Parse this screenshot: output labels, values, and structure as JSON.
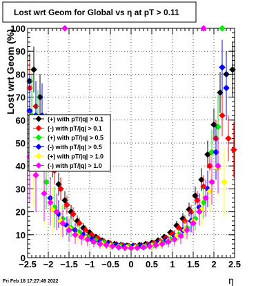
{
  "title": "Lost wrt Geom for Global vs    η at pT > 0.11",
  "footer": "Fri Feb 18 17:27:49 2022",
  "chart_data": {
    "type": "scatter",
    "title": "Lost wrt Geom for Global vs    η at pT > 0.11",
    "xlabel": "η",
    "ylabel": "Lost wrt Geom (%)",
    "xlim": [
      -2.5,
      2.5
    ],
    "ylim": [
      0,
      100
    ],
    "x_ticks": [
      "−2.5",
      "−2",
      "−1.5",
      "−1",
      "−0.5",
      "0",
      "0.5",
      "1",
      "1.5",
      "2",
      "2.5"
    ],
    "y_ticks": [
      "0",
      "10",
      "20",
      "30",
      "40",
      "50",
      "60",
      "70",
      "80",
      "90",
      "100"
    ],
    "grid": true,
    "legend_position": "left",
    "series": [
      {
        "name": "(+) with pT/|q| > 0.1",
        "color": "#000000",
        "x": [
          -2.45,
          -2.35,
          -2.2,
          -2.05,
          -1.9,
          -1.75,
          -1.6,
          -1.45,
          -1.3,
          -1.15,
          -1.0,
          -0.85,
          -0.7,
          -0.55,
          -0.4,
          -0.25,
          -0.1,
          0.05,
          0.2,
          0.35,
          0.5,
          0.65,
          0.8,
          0.95,
          1.1,
          1.25,
          1.4,
          1.55,
          1.7,
          1.85,
          2.0,
          2.15,
          2.3,
          2.45
        ],
        "y": [
          77,
          82,
          70,
          55,
          42,
          32,
          25,
          20,
          16,
          13,
          11,
          9,
          7.5,
          6.5,
          6,
          5.5,
          5.2,
          5.2,
          5.5,
          6,
          6.5,
          7.5,
          9,
          11,
          14,
          17,
          21,
          27,
          34,
          45,
          58,
          72,
          80,
          82
        ],
        "err": [
          12,
          10,
          10,
          8,
          7,
          5,
          4,
          3,
          2.5,
          2,
          1.5,
          1.2,
          1,
          1,
          0.8,
          0.8,
          0.8,
          0.8,
          0.8,
          0.8,
          1,
          1,
          1.2,
          1.5,
          2,
          2.5,
          3,
          4,
          5,
          6,
          7,
          9,
          10,
          12
        ]
      },
      {
        "name": "(-) with pT/|q| > 0.1",
        "color": "#ff0000",
        "x": [
          -2.45,
          -2.3,
          -2.15,
          -2.0,
          -1.85,
          -1.7,
          -1.55,
          -1.4,
          -1.25,
          -1.1,
          -0.95,
          -0.8,
          -0.65,
          -0.5,
          -0.35,
          -0.2,
          -0.05,
          0.1,
          0.25,
          0.4,
          0.55,
          0.7,
          0.85,
          1.0,
          1.15,
          1.3,
          1.45,
          1.6,
          1.75,
          1.9,
          2.05,
          2.2,
          2.35,
          2.48
        ],
        "y": [
          74,
          66,
          58,
          48,
          38,
          30,
          23,
          19,
          15,
          12,
          10,
          8.5,
          7,
          6.2,
          5.8,
          5.4,
          5.1,
          5.1,
          5.4,
          5.8,
          6.3,
          7.2,
          8.6,
          10.5,
          13,
          16,
          20,
          25,
          31,
          40,
          52,
          62,
          52,
          47
        ],
        "err": [
          12,
          10,
          9,
          8,
          6,
          5,
          4,
          3,
          2.5,
          2,
          1.5,
          1.2,
          1,
          1,
          0.8,
          0.8,
          0.8,
          0.8,
          0.8,
          0.8,
          1,
          1,
          1.2,
          1.5,
          2,
          2.5,
          3,
          4,
          5,
          6,
          8,
          9,
          10,
          12
        ]
      },
      {
        "name": "(+) with pT/|q| > 0.5",
        "color": "#00ee00",
        "x": [
          -2.4,
          -2.25,
          -2.05,
          -1.85,
          -1.65,
          -1.45,
          -1.25,
          -1.05,
          -0.85,
          -0.65,
          -0.45,
          -0.25,
          -0.05,
          0.15,
          0.35,
          0.55,
          0.75,
          0.95,
          1.15,
          1.35,
          1.55,
          1.75,
          1.95,
          2.1,
          2.2
        ],
        "y": [
          62,
          58,
          33,
          22,
          17,
          13,
          11,
          9,
          7.5,
          6.5,
          5.5,
          5,
          4.8,
          4.8,
          5,
          5.5,
          6.5,
          8,
          10,
          13,
          17,
          24,
          46,
          57,
          100
        ],
        "err": [
          18,
          15,
          12,
          9,
          6,
          4,
          3,
          2.5,
          2,
          1.5,
          1.2,
          1,
          1,
          1,
          1,
          1.2,
          1.5,
          2,
          2.5,
          3.5,
          5,
          7,
          10,
          14,
          0
        ]
      },
      {
        "name": "(-) with pT/|q| > 0.5",
        "color": "#0000ff",
        "x": [
          -2.45,
          -2.3,
          -2.15,
          -1.95,
          -1.75,
          -1.55,
          -1.35,
          -1.15,
          -0.95,
          -0.75,
          -0.55,
          -0.35,
          -0.15,
          0.05,
          0.25,
          0.45,
          0.65,
          0.85,
          1.05,
          1.25,
          1.45,
          1.65,
          1.85,
          2.05,
          2.2,
          2.3
        ],
        "y": [
          64,
          62,
          62,
          26,
          19,
          14,
          12,
          10,
          8,
          7,
          6,
          5.5,
          5,
          5,
          5.2,
          5.6,
          6.4,
          7.6,
          9.5,
          12,
          16,
          22,
          30,
          46,
          83,
          74
        ],
        "err": [
          16,
          15,
          14,
          9,
          6,
          4,
          3,
          2.5,
          2,
          1.5,
          1.2,
          1,
          1,
          1,
          1,
          1.2,
          1.5,
          2,
          2.5,
          3.5,
          5,
          6,
          8,
          12,
          12,
          14
        ]
      },
      {
        "name": "(+) with pT/|q| > 1.0",
        "color": "#ffff00",
        "x": [
          -2.35,
          -2.1,
          -1.9,
          -1.7,
          -1.5,
          -1.3,
          -1.1,
          -0.9,
          -0.7,
          -0.5,
          -0.3,
          -0.1,
          0.1,
          0.3,
          0.5,
          0.7,
          0.9,
          1.1,
          1.3,
          1.5,
          1.7,
          1.9,
          2.1,
          2.25
        ],
        "y": [
          40,
          28,
          21,
          16,
          13,
          10,
          8.5,
          7,
          6,
          5.2,
          4.8,
          4.5,
          4.5,
          4.8,
          5.2,
          6,
          7.5,
          9.5,
          12,
          16,
          21,
          29,
          39,
          33
        ],
        "err": [
          18,
          14,
          10,
          7,
          5,
          3.5,
          3,
          2.5,
          2,
          1.5,
          1.2,
          1.2,
          1.2,
          1.2,
          1.5,
          2,
          2.5,
          3,
          4,
          5,
          7,
          9,
          12,
          15
        ]
      },
      {
        "name": "(-) with pT/|q| > 1.0",
        "color": "#ff00ff",
        "x": [
          -2.45,
          -2.3,
          -2.1,
          -1.95,
          -1.8,
          -1.65,
          -1.5,
          -1.35,
          -1.2,
          -1.05,
          -0.9,
          -0.75,
          -0.6,
          -0.45,
          -0.3,
          -0.15,
          0.0,
          0.15,
          0.3,
          0.45,
          0.6,
          0.75,
          0.9,
          1.05,
          1.2,
          1.35,
          1.5,
          1.65,
          1.8,
          1.95,
          2.1,
          1.75,
          -1.6
        ],
        "y": [
          44,
          36,
          28,
          24,
          20,
          15,
          12,
          10,
          9,
          8,
          7,
          6,
          5.5,
          5,
          4.5,
          4.3,
          4.2,
          4.3,
          4.5,
          5,
          5.5,
          6,
          7,
          8,
          9.5,
          12,
          15,
          20,
          26,
          33,
          40,
          100,
          100
        ],
        "err": [
          20,
          16,
          12,
          10,
          8,
          6,
          5,
          4,
          3.5,
          3,
          2.5,
          2,
          1.8,
          1.5,
          1.3,
          1.3,
          1.3,
          1.3,
          1.3,
          1.5,
          1.8,
          2,
          2.5,
          3,
          3.5,
          4,
          5,
          6,
          8,
          10,
          12,
          0,
          0
        ]
      }
    ]
  }
}
